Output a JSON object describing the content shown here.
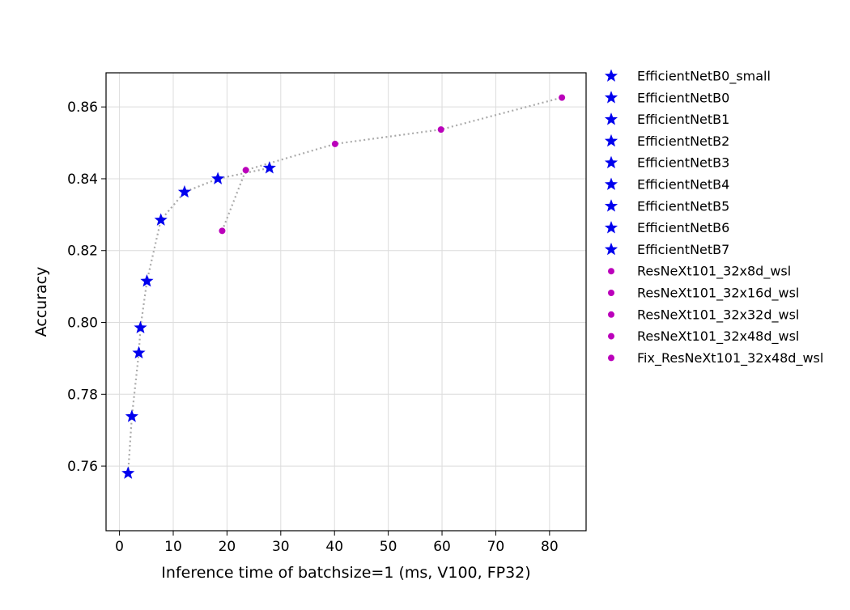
{
  "chart_data": {
    "type": "scatter",
    "title": "",
    "xlabel": "Inference time of batchsize=1 (ms, V100, FP32)",
    "ylabel": "Accuracy",
    "xlim": [
      -2.5,
      86.8
    ],
    "ylim": [
      0.742,
      0.8695
    ],
    "x_ticks": [
      0,
      10,
      20,
      30,
      40,
      50,
      60,
      70,
      80
    ],
    "y_ticks": [
      0.76,
      0.78,
      0.8,
      0.82,
      0.84,
      0.86
    ],
    "y_tick_labels": [
      "0.76",
      "0.78",
      "0.80",
      "0.82",
      "0.84",
      "0.86"
    ],
    "grid": true,
    "legend_position": "outside-right",
    "colors": {
      "efficientnet": "#0000ee",
      "resnext": "#bb00bb",
      "trend_line": "#aaaaaa"
    },
    "series": [
      {
        "name": "EfficientNetB0_small",
        "marker": "star",
        "x": 1.6,
        "y": 0.758
      },
      {
        "name": "EfficientNetB0",
        "marker": "star",
        "x": 2.3,
        "y": 0.7738
      },
      {
        "name": "EfficientNetB1",
        "marker": "star",
        "x": 3.6,
        "y": 0.7915
      },
      {
        "name": "EfficientNetB2",
        "marker": "star",
        "x": 3.9,
        "y": 0.7985
      },
      {
        "name": "EfficientNetB3",
        "marker": "star",
        "x": 5.1,
        "y": 0.8115
      },
      {
        "name": "EfficientNetB4",
        "marker": "star",
        "x": 7.7,
        "y": 0.8285
      },
      {
        "name": "EfficientNetB5",
        "marker": "star",
        "x": 12.1,
        "y": 0.8363
      },
      {
        "name": "EfficientNetB6",
        "marker": "star",
        "x": 18.3,
        "y": 0.84
      },
      {
        "name": "EfficientNetB7",
        "marker": "star",
        "x": 27.9,
        "y": 0.843
      },
      {
        "name": "ResNeXt101_32x8d_wsl",
        "marker": "dot",
        "x": 19.1,
        "y": 0.8255
      },
      {
        "name": "ResNeXt101_32x16d_wsl",
        "marker": "dot",
        "x": 23.5,
        "y": 0.8424
      },
      {
        "name": "ResNeXt101_32x32d_wsl",
        "marker": "dot",
        "x": 40.1,
        "y": 0.8497
      },
      {
        "name": "ResNeXt101_32x48d_wsl",
        "marker": "dot",
        "x": 59.8,
        "y": 0.8537
      },
      {
        "name": "Fix_ResNeXt101_32x48d_wsl",
        "marker": "dot",
        "x": 82.3,
        "y": 0.8626
      }
    ],
    "trend_lines": [
      {
        "points": [
          [
            1.6,
            0.758
          ],
          [
            2.3,
            0.7738
          ],
          [
            3.6,
            0.7915
          ],
          [
            3.9,
            0.7985
          ],
          [
            5.1,
            0.8115
          ],
          [
            7.7,
            0.8285
          ],
          [
            12.1,
            0.8363
          ],
          [
            18.3,
            0.84
          ],
          [
            27.9,
            0.843
          ]
        ]
      },
      {
        "points": [
          [
            19.1,
            0.8255
          ],
          [
            23.5,
            0.8424
          ],
          [
            40.1,
            0.8497
          ],
          [
            59.8,
            0.8537
          ],
          [
            82.3,
            0.8626
          ]
        ]
      }
    ]
  }
}
